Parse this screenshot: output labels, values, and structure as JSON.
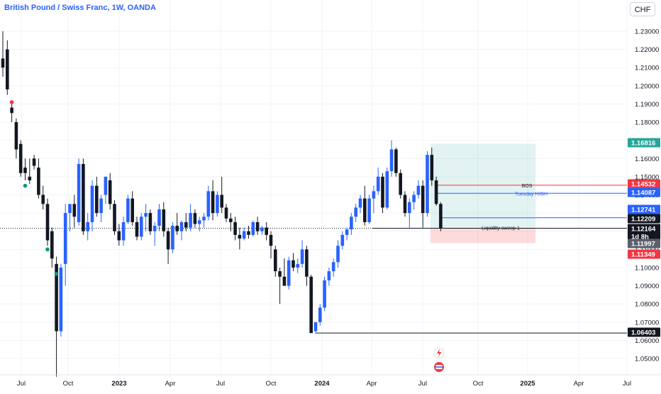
{
  "title": "British Pound / Swiss Franc, 1W, OANDA",
  "currency": "CHF",
  "chart_data": {
    "type": "candlestick",
    "symbol": "GBPCHF",
    "timeframe": "1W",
    "ylim": [
      1.04,
      1.24
    ],
    "y_ticks": [
      "1.05000",
      "1.06000",
      "1.07000",
      "1.08000",
      "1.09000",
      "1.10000",
      "1.11000",
      "1.12000",
      "1.13000",
      "1.14000",
      "1.15000",
      "1.16000",
      "1.17000",
      "1.18000",
      "1.19000",
      "1.20000",
      "1.21000",
      "1.22000",
      "1.23000"
    ],
    "x_ticks": [
      {
        "label": "Jul",
        "bold": false
      },
      {
        "label": "Oct",
        "bold": false
      },
      {
        "label": "2023",
        "bold": true
      },
      {
        "label": "Apr",
        "bold": false
      },
      {
        "label": "Jul",
        "bold": false
      },
      {
        "label": "Oct",
        "bold": false
      },
      {
        "label": "2024",
        "bold": true
      },
      {
        "label": "Apr",
        "bold": false
      },
      {
        "label": "Jul",
        "bold": false
      },
      {
        "label": "Oct",
        "bold": false
      },
      {
        "label": "2025",
        "bold": true
      },
      {
        "label": "Apr",
        "bold": false
      },
      {
        "label": "Jul",
        "bold": false
      }
    ],
    "candles": [
      [
        1.215,
        1.23,
        1.21,
        1.205
      ],
      [
        1.22,
        1.225,
        1.198,
        1.195
      ],
      [
        1.188,
        1.19,
        1.185,
        1.18
      ],
      [
        1.18,
        1.182,
        1.165,
        1.16
      ],
      [
        1.168,
        1.17,
        1.152,
        1.15
      ],
      [
        1.155,
        1.16,
        1.152,
        1.148
      ],
      [
        1.15,
        1.16,
        1.148,
        1.146
      ],
      [
        1.16,
        1.162,
        1.156,
        1.154
      ],
      [
        1.155,
        1.16,
        1.14,
        1.138
      ],
      [
        1.14,
        1.145,
        1.135,
        1.132
      ],
      [
        1.135,
        1.138,
        1.115,
        1.112
      ],
      [
        1.12,
        1.122,
        1.105,
        1.1
      ],
      [
        1.102,
        1.106,
        1.065,
        1.04
      ],
      [
        1.065,
        1.102,
        1.1,
        1.062
      ],
      [
        1.102,
        1.135,
        1.13,
        1.09
      ],
      [
        1.13,
        1.132,
        1.135,
        1.12
      ],
      [
        1.135,
        1.14,
        1.128,
        1.122
      ],
      [
        1.125,
        1.16,
        1.157,
        1.123
      ],
      [
        1.157,
        1.16,
        1.12,
        1.118
      ],
      [
        1.12,
        1.13,
        1.125,
        1.115
      ],
      [
        1.125,
        1.148,
        1.145,
        1.12
      ],
      [
        1.145,
        1.15,
        1.13,
        1.128
      ],
      [
        1.13,
        1.14,
        1.138,
        1.125
      ],
      [
        1.14,
        1.145,
        1.15,
        1.135
      ],
      [
        1.148,
        1.152,
        1.135,
        1.132
      ],
      [
        1.135,
        1.137,
        1.12,
        1.118
      ],
      [
        1.12,
        1.124,
        1.115,
        1.112
      ],
      [
        1.115,
        1.128,
        1.125,
        1.112
      ],
      [
        1.125,
        1.14,
        1.138,
        1.124
      ],
      [
        1.138,
        1.142,
        1.125,
        1.123
      ],
      [
        1.125,
        1.128,
        1.117,
        1.115
      ],
      [
        1.117,
        1.13,
        1.128,
        1.115
      ],
      [
        1.128,
        1.135,
        1.13,
        1.12
      ],
      [
        1.13,
        1.132,
        1.12,
        1.118
      ],
      [
        1.12,
        1.125,
        1.123,
        1.112
      ],
      [
        1.123,
        1.135,
        1.132,
        1.12
      ],
      [
        1.132,
        1.136,
        1.12,
        1.117
      ],
      [
        1.12,
        1.122,
        1.11,
        1.102
      ],
      [
        1.11,
        1.125,
        1.123,
        1.108
      ],
      [
        1.123,
        1.13,
        1.12,
        1.118
      ],
      [
        1.12,
        1.126,
        1.125,
        1.115
      ],
      [
        1.125,
        1.13,
        1.122,
        1.12
      ],
      [
        1.122,
        1.135,
        1.13,
        1.12
      ],
      [
        1.13,
        1.132,
        1.124,
        1.122
      ],
      [
        1.124,
        1.128,
        1.126,
        1.12
      ],
      [
        1.126,
        1.13,
        1.128,
        1.122
      ],
      [
        1.128,
        1.145,
        1.142,
        1.126
      ],
      [
        1.142,
        1.148,
        1.13,
        1.126
      ],
      [
        1.13,
        1.142,
        1.14,
        1.128
      ],
      [
        1.14,
        1.15,
        1.133,
        1.13
      ],
      [
        1.133,
        1.135,
        1.127,
        1.125
      ],
      [
        1.127,
        1.13,
        1.125,
        1.12
      ],
      [
        1.125,
        1.128,
        1.118,
        1.115
      ],
      [
        1.118,
        1.122,
        1.116,
        1.11
      ],
      [
        1.116,
        1.122,
        1.12,
        1.115
      ],
      [
        1.12,
        1.123,
        1.118,
        1.116
      ],
      [
        1.118,
        1.126,
        1.125,
        1.117
      ],
      [
        1.125,
        1.128,
        1.12,
        1.118
      ],
      [
        1.12,
        1.123,
        1.122,
        1.118
      ],
      [
        1.122,
        1.125,
        1.118,
        1.115
      ],
      [
        1.118,
        1.12,
        1.112,
        1.105
      ],
      [
        1.11,
        1.112,
        1.098,
        1.095
      ],
      [
        1.098,
        1.1,
        1.095,
        1.08
      ],
      [
        1.095,
        1.105,
        1.09,
        1.09
      ],
      [
        1.09,
        1.106,
        1.104,
        1.088
      ],
      [
        1.104,
        1.108,
        1.1,
        1.098
      ],
      [
        1.1,
        1.105,
        1.102,
        1.097
      ],
      [
        1.102,
        1.115,
        1.11,
        1.1
      ],
      [
        1.11,
        1.112,
        1.095,
        1.09
      ],
      [
        1.095,
        1.096,
        1.064,
        1.064
      ],
      [
        1.065,
        1.07,
        1.07,
        1.064
      ],
      [
        1.07,
        1.08,
        1.078,
        1.068
      ],
      [
        1.078,
        1.095,
        1.093,
        1.076
      ],
      [
        1.093,
        1.1,
        1.098,
        1.09
      ],
      [
        1.098,
        1.105,
        1.103,
        1.095
      ],
      [
        1.103,
        1.115,
        1.112,
        1.1
      ],
      [
        1.112,
        1.12,
        1.118,
        1.11
      ],
      [
        1.118,
        1.122,
        1.121,
        1.115
      ],
      [
        1.121,
        1.13,
        1.128,
        1.118
      ],
      [
        1.128,
        1.135,
        1.133,
        1.125
      ],
      [
        1.133,
        1.14,
        1.138,
        1.13
      ],
      [
        1.138,
        1.145,
        1.125,
        1.123
      ],
      [
        1.125,
        1.14,
        1.138,
        1.124
      ],
      [
        1.138,
        1.145,
        1.142,
        1.13
      ],
      [
        1.142,
        1.155,
        1.15,
        1.14
      ],
      [
        1.15,
        1.152,
        1.133,
        1.13
      ],
      [
        1.133,
        1.155,
        1.153,
        1.132
      ],
      [
        1.153,
        1.17,
        1.165,
        1.15
      ],
      [
        1.165,
        1.166,
        1.152,
        1.15
      ],
      [
        1.152,
        1.154,
        1.14,
        1.138
      ],
      [
        1.14,
        1.142,
        1.13,
        1.128
      ],
      [
        1.13,
        1.138,
        1.136,
        1.122
      ],
      [
        1.136,
        1.142,
        1.14,
        1.132
      ],
      [
        1.14,
        1.148,
        1.145,
        1.138
      ],
      [
        1.145,
        1.148,
        1.13,
        1.122
      ],
      [
        1.13,
        1.164,
        1.162,
        1.128
      ],
      [
        1.162,
        1.166,
        1.148,
        1.145
      ],
      [
        1.148,
        1.15,
        1.135,
        1.134
      ],
      [
        1.135,
        1.136,
        1.1216,
        1.12
      ]
    ],
    "signal_dots": [
      {
        "index": 2,
        "price": 1.191,
        "color": "#f23645"
      },
      {
        "index": 5,
        "price": 1.145,
        "color": "#089981"
      },
      {
        "index": 10,
        "price": 1.11,
        "color": "#089981"
      },
      {
        "index": 12,
        "price": 1.0965,
        "color": "#089981"
      }
    ],
    "levels": [
      {
        "name": "target",
        "price": 1.16816,
        "label": "1.16816",
        "bg": "#26a69a"
      },
      {
        "name": "bos",
        "price": 1.14532,
        "label": "1.14532",
        "bg": "#f23645",
        "line_label": "BOS",
        "line_color": "#f23645"
      },
      {
        "name": "tuesday-high",
        "price": 1.14087,
        "label": "1.14087",
        "bg": "#2962ff",
        "line_label": "Tuesday HIGH",
        "line_color": "#2962ff"
      },
      {
        "name": "level-12741",
        "price": 1.12741,
        "label": "1.12741",
        "bg": "#2962ff",
        "line_color": "#2962ff"
      },
      {
        "name": "current-price",
        "price": 1.12209,
        "label": "1.12209",
        "bg": "#131722"
      },
      {
        "name": "sweep",
        "price": 1.12164,
        "label": "1.12164",
        "bg": "#131722",
        "line_label": "Liquidity sweep 1",
        "line_color": "#131722"
      },
      {
        "name": "countdown",
        "price": 1.117,
        "label": "1d 8h",
        "bg": "#131722"
      },
      {
        "name": "stop-level",
        "price": 1.11997,
        "label": "1.11997",
        "bg": "#5d606b"
      },
      {
        "name": "stop",
        "price": 1.11349,
        "label": "1.11349",
        "bg": "#f23645"
      },
      {
        "name": "low",
        "price": 1.06403,
        "label": "1.06403",
        "bg": "#131722",
        "line_color": "#131722"
      }
    ],
    "position_box": {
      "target": 1.16816,
      "entry": 1.12164,
      "stop": 1.11349
    }
  }
}
